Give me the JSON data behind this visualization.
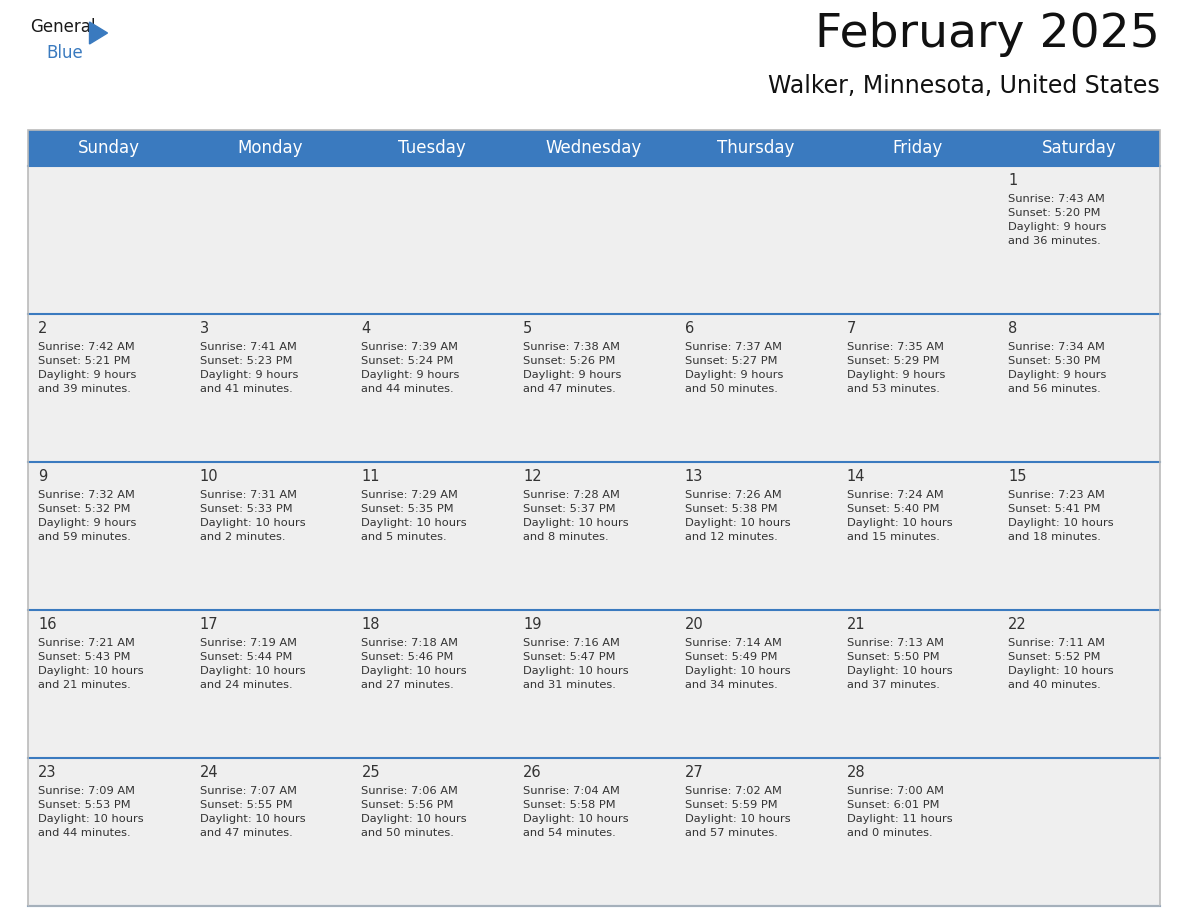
{
  "title": "February 2025",
  "subtitle": "Walker, Minnesota, United States",
  "header_bg_color": "#3a7abf",
  "header_text_color": "#ffffff",
  "cell_bg_color": "#efefef",
  "cell_text_color": "#333333",
  "day_number_color": "#333333",
  "divider_color": "#3a7abf",
  "background_color": "#ffffff",
  "days_of_week": [
    "Sunday",
    "Monday",
    "Tuesday",
    "Wednesday",
    "Thursday",
    "Friday",
    "Saturday"
  ],
  "weeks": [
    [
      {
        "day": null,
        "info": null
      },
      {
        "day": null,
        "info": null
      },
      {
        "day": null,
        "info": null
      },
      {
        "day": null,
        "info": null
      },
      {
        "day": null,
        "info": null
      },
      {
        "day": null,
        "info": null
      },
      {
        "day": 1,
        "info": "Sunrise: 7:43 AM\nSunset: 5:20 PM\nDaylight: 9 hours\nand 36 minutes."
      }
    ],
    [
      {
        "day": 2,
        "info": "Sunrise: 7:42 AM\nSunset: 5:21 PM\nDaylight: 9 hours\nand 39 minutes."
      },
      {
        "day": 3,
        "info": "Sunrise: 7:41 AM\nSunset: 5:23 PM\nDaylight: 9 hours\nand 41 minutes."
      },
      {
        "day": 4,
        "info": "Sunrise: 7:39 AM\nSunset: 5:24 PM\nDaylight: 9 hours\nand 44 minutes."
      },
      {
        "day": 5,
        "info": "Sunrise: 7:38 AM\nSunset: 5:26 PM\nDaylight: 9 hours\nand 47 minutes."
      },
      {
        "day": 6,
        "info": "Sunrise: 7:37 AM\nSunset: 5:27 PM\nDaylight: 9 hours\nand 50 minutes."
      },
      {
        "day": 7,
        "info": "Sunrise: 7:35 AM\nSunset: 5:29 PM\nDaylight: 9 hours\nand 53 minutes."
      },
      {
        "day": 8,
        "info": "Sunrise: 7:34 AM\nSunset: 5:30 PM\nDaylight: 9 hours\nand 56 minutes."
      }
    ],
    [
      {
        "day": 9,
        "info": "Sunrise: 7:32 AM\nSunset: 5:32 PM\nDaylight: 9 hours\nand 59 minutes."
      },
      {
        "day": 10,
        "info": "Sunrise: 7:31 AM\nSunset: 5:33 PM\nDaylight: 10 hours\nand 2 minutes."
      },
      {
        "day": 11,
        "info": "Sunrise: 7:29 AM\nSunset: 5:35 PM\nDaylight: 10 hours\nand 5 minutes."
      },
      {
        "day": 12,
        "info": "Sunrise: 7:28 AM\nSunset: 5:37 PM\nDaylight: 10 hours\nand 8 minutes."
      },
      {
        "day": 13,
        "info": "Sunrise: 7:26 AM\nSunset: 5:38 PM\nDaylight: 10 hours\nand 12 minutes."
      },
      {
        "day": 14,
        "info": "Sunrise: 7:24 AM\nSunset: 5:40 PM\nDaylight: 10 hours\nand 15 minutes."
      },
      {
        "day": 15,
        "info": "Sunrise: 7:23 AM\nSunset: 5:41 PM\nDaylight: 10 hours\nand 18 minutes."
      }
    ],
    [
      {
        "day": 16,
        "info": "Sunrise: 7:21 AM\nSunset: 5:43 PM\nDaylight: 10 hours\nand 21 minutes."
      },
      {
        "day": 17,
        "info": "Sunrise: 7:19 AM\nSunset: 5:44 PM\nDaylight: 10 hours\nand 24 minutes."
      },
      {
        "day": 18,
        "info": "Sunrise: 7:18 AM\nSunset: 5:46 PM\nDaylight: 10 hours\nand 27 minutes."
      },
      {
        "day": 19,
        "info": "Sunrise: 7:16 AM\nSunset: 5:47 PM\nDaylight: 10 hours\nand 31 minutes."
      },
      {
        "day": 20,
        "info": "Sunrise: 7:14 AM\nSunset: 5:49 PM\nDaylight: 10 hours\nand 34 minutes."
      },
      {
        "day": 21,
        "info": "Sunrise: 7:13 AM\nSunset: 5:50 PM\nDaylight: 10 hours\nand 37 minutes."
      },
      {
        "day": 22,
        "info": "Sunrise: 7:11 AM\nSunset: 5:52 PM\nDaylight: 10 hours\nand 40 minutes."
      }
    ],
    [
      {
        "day": 23,
        "info": "Sunrise: 7:09 AM\nSunset: 5:53 PM\nDaylight: 10 hours\nand 44 minutes."
      },
      {
        "day": 24,
        "info": "Sunrise: 7:07 AM\nSunset: 5:55 PM\nDaylight: 10 hours\nand 47 minutes."
      },
      {
        "day": 25,
        "info": "Sunrise: 7:06 AM\nSunset: 5:56 PM\nDaylight: 10 hours\nand 50 minutes."
      },
      {
        "day": 26,
        "info": "Sunrise: 7:04 AM\nSunset: 5:58 PM\nDaylight: 10 hours\nand 54 minutes."
      },
      {
        "day": 27,
        "info": "Sunrise: 7:02 AM\nSunset: 5:59 PM\nDaylight: 10 hours\nand 57 minutes."
      },
      {
        "day": 28,
        "info": "Sunrise: 7:00 AM\nSunset: 6:01 PM\nDaylight: 11 hours\nand 0 minutes."
      },
      {
        "day": null,
        "info": null
      }
    ]
  ],
  "logo_general_color": "#1a1a1a",
  "logo_blue_color": "#3a7abf",
  "logo_triangle_color": "#3a7abf",
  "title_fontsize": 34,
  "subtitle_fontsize": 17,
  "header_fontsize": 12,
  "day_num_fontsize": 10.5,
  "info_fontsize": 8.2,
  "fig_width": 11.88,
  "fig_height": 9.18,
  "dpi": 100
}
